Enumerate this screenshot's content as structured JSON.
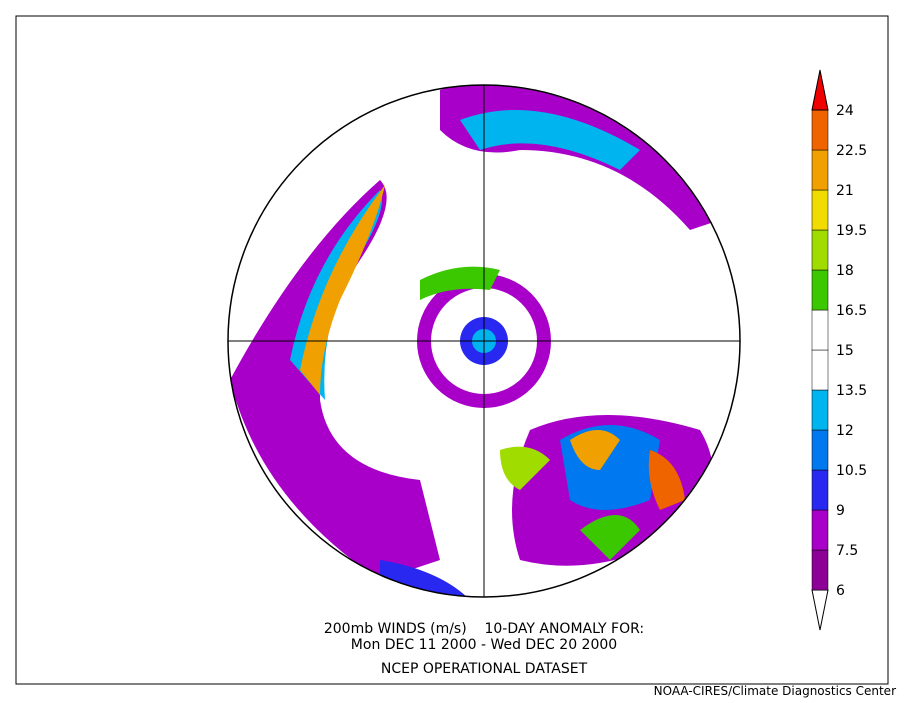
{
  "caption": {
    "line1": "200mb WINDS (m/s)    10-DAY ANOMALY FOR:",
    "line2": "Mon DEC 11 2000 - Wed DEC 20 2000",
    "line3": "NCEP OPERATIONAL DATASET"
  },
  "credit": "NOAA-CIRES/Climate Diagnostics Center",
  "colorbar": {
    "levels": [
      6,
      7.5,
      9,
      10.5,
      12,
      13.5,
      15,
      16.5,
      18,
      19.5,
      21,
      22.5,
      24
    ],
    "colors": [
      "#ffffff",
      "#8c0096",
      "#a800c8",
      "#2828f0",
      "#0078f0",
      "#00b4f0",
      "#ffffff",
      "#ffffff",
      "#3cc800",
      "#a0dc00",
      "#f0dc00",
      "#f0a000",
      "#f06400",
      "#f00000"
    ]
  }
}
